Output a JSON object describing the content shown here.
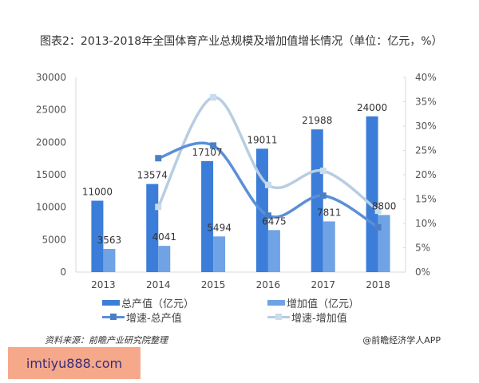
{
  "title": "图表2：2013-2018年全国体育产业总规模及增加值增长情况（单位：亿元，%）",
  "legend": {
    "total": "总产值（亿元）",
    "added": "增加值（亿元）",
    "total_growth": "增速-总产值",
    "added_growth": "增速-增加值"
  },
  "footer": {
    "source": "资料来源：前瞻产业研究院整理",
    "credit": "@前瞻经济学人APP"
  },
  "ad": {
    "text": "imtiyu888.com"
  },
  "colors": {
    "total": "#3b7dd8",
    "added": "#6fa3e6",
    "total_growth": "#5b8fd6",
    "added_growth": "#b8cde3"
  },
  "chart_data": {
    "type": "bar",
    "title": "图表2：2013-2018年全国体育产业总规模及增加值增长情况（单位：亿元，%）",
    "categories": [
      "2013",
      "2014",
      "2015",
      "2016",
      "2017",
      "2018"
    ],
    "series": [
      {
        "name": "总产值（亿元）",
        "type": "bar",
        "axis": "left",
        "values": [
          11000,
          13574,
          17107,
          19011,
          21988,
          24000
        ]
      },
      {
        "name": "增加值（亿元）",
        "type": "bar",
        "axis": "left",
        "values": [
          3563,
          4041,
          5494,
          6475,
          7811,
          8800
        ]
      },
      {
        "name": "增速-总产值",
        "type": "line",
        "axis": "right",
        "values": [
          null,
          23.4,
          26.0,
          11.6,
          15.7,
          9.2
        ]
      },
      {
        "name": "增速-增加值",
        "type": "line",
        "axis": "right",
        "values": [
          null,
          13.4,
          35.9,
          17.9,
          20.8,
          12.6
        ]
      }
    ],
    "left_axis": {
      "ticks": [
        "0",
        "5000",
        "10000",
        "15000",
        "20000",
        "25000",
        "30000"
      ],
      "ylim": [
        0,
        30000
      ]
    },
    "right_axis": {
      "ticks": [
        "0%",
        "5%",
        "10%",
        "15%",
        "20%",
        "25%",
        "30%",
        "35%",
        "40%"
      ],
      "ylim": [
        0,
        40
      ]
    },
    "xlabel": "",
    "ylabel": "",
    "grid": false,
    "legend_position": "bottom"
  }
}
